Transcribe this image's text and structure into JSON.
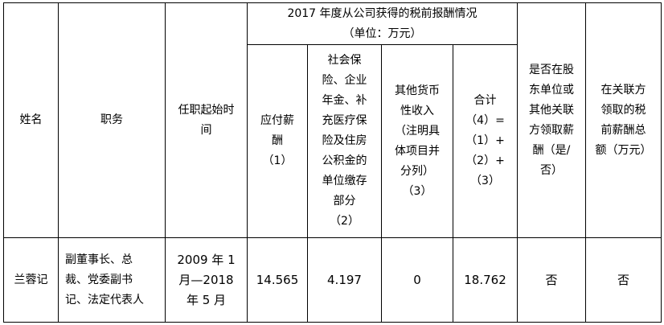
{
  "table": {
    "headers": {
      "name": "姓名",
      "position": "职务",
      "term": "任职起始时\n间",
      "group": "2017 年度从公司获得的税前报酬情况\n（单位：万元）",
      "col1": "应付薪\n酬\n（1）",
      "col2": "社会保\n险、企业\n年金、补\n充医疗保\n险及住房\n公积金的\n单位缴存\n部分\n（2）",
      "col3": "其他货币\n性收入\n（注明具\n体项目并\n分列）\n（3）",
      "col4": "合计\n（4）=\n（1）+\n（2）+\n（3）",
      "shareholder": "是否在股\n东单位或\n其他关联\n方领取薪\n酬（是/\n否）",
      "related": "在关联方\n领取的税\n前薪酬总\n额（万元）"
    },
    "rows": [
      {
        "name": "兰蓉记",
        "position": "副董事长、总\n裁、党委副书\n记、法定代表人",
        "term": "2009 年 1\n月—2018\n年 5 月",
        "col1": "14.565",
        "col2": "4.197",
        "col3": "0",
        "col4": "18.762",
        "shareholder": "否",
        "related": "否"
      }
    ]
  }
}
